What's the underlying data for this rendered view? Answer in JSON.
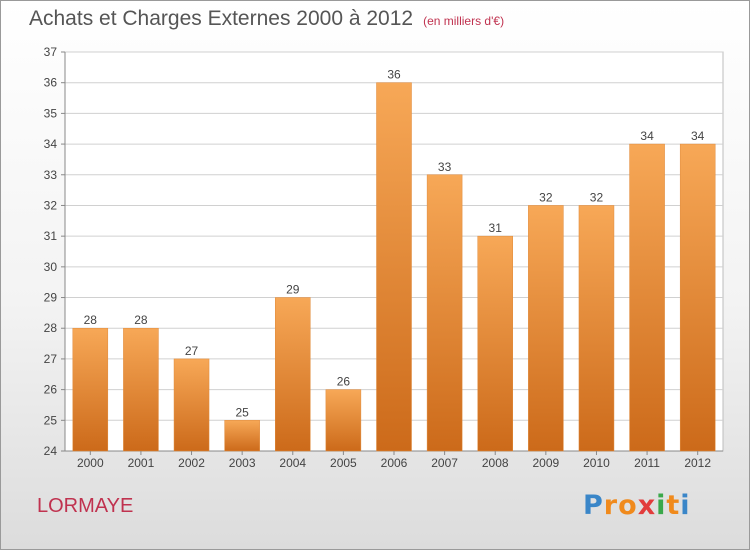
{
  "title": "Achats et Charges Externes 2000 à 2012",
  "subtitle": "(en milliers d'€)",
  "commune": "LORMAYE",
  "logo": {
    "letters": [
      "P",
      "r",
      "o",
      "x",
      "i",
      "t",
      "i"
    ],
    "colors": [
      "#3a86c8",
      "#f08a1c",
      "#f08a1c",
      "#e23c3c",
      "#3aa84a",
      "#f08a1c",
      "#3a86c8"
    ]
  },
  "colors": {
    "bar_light": "#f7a857",
    "bar_dark": "#cc6a1a",
    "grid": "#d0d0d0",
    "axis_text": "#444444",
    "title": "#555555",
    "accent": "#c0324f"
  },
  "chart_data": {
    "type": "bar",
    "categories": [
      "2000",
      "2001",
      "2002",
      "2003",
      "2004",
      "2005",
      "2006",
      "2007",
      "2008",
      "2009",
      "2010",
      "2011",
      "2012"
    ],
    "values": [
      28,
      28,
      27,
      25,
      29,
      26,
      36,
      33,
      31,
      32,
      32,
      34,
      34
    ],
    "data_labels": [
      "28",
      "28",
      "27",
      "25",
      "29",
      "26",
      "36",
      "33",
      "31",
      "32",
      "32",
      "34",
      "34"
    ],
    "yticks": [
      24,
      25,
      26,
      27,
      28,
      29,
      30,
      31,
      32,
      33,
      34,
      35,
      36,
      37
    ],
    "ylim": [
      24,
      37
    ],
    "grid": true
  }
}
